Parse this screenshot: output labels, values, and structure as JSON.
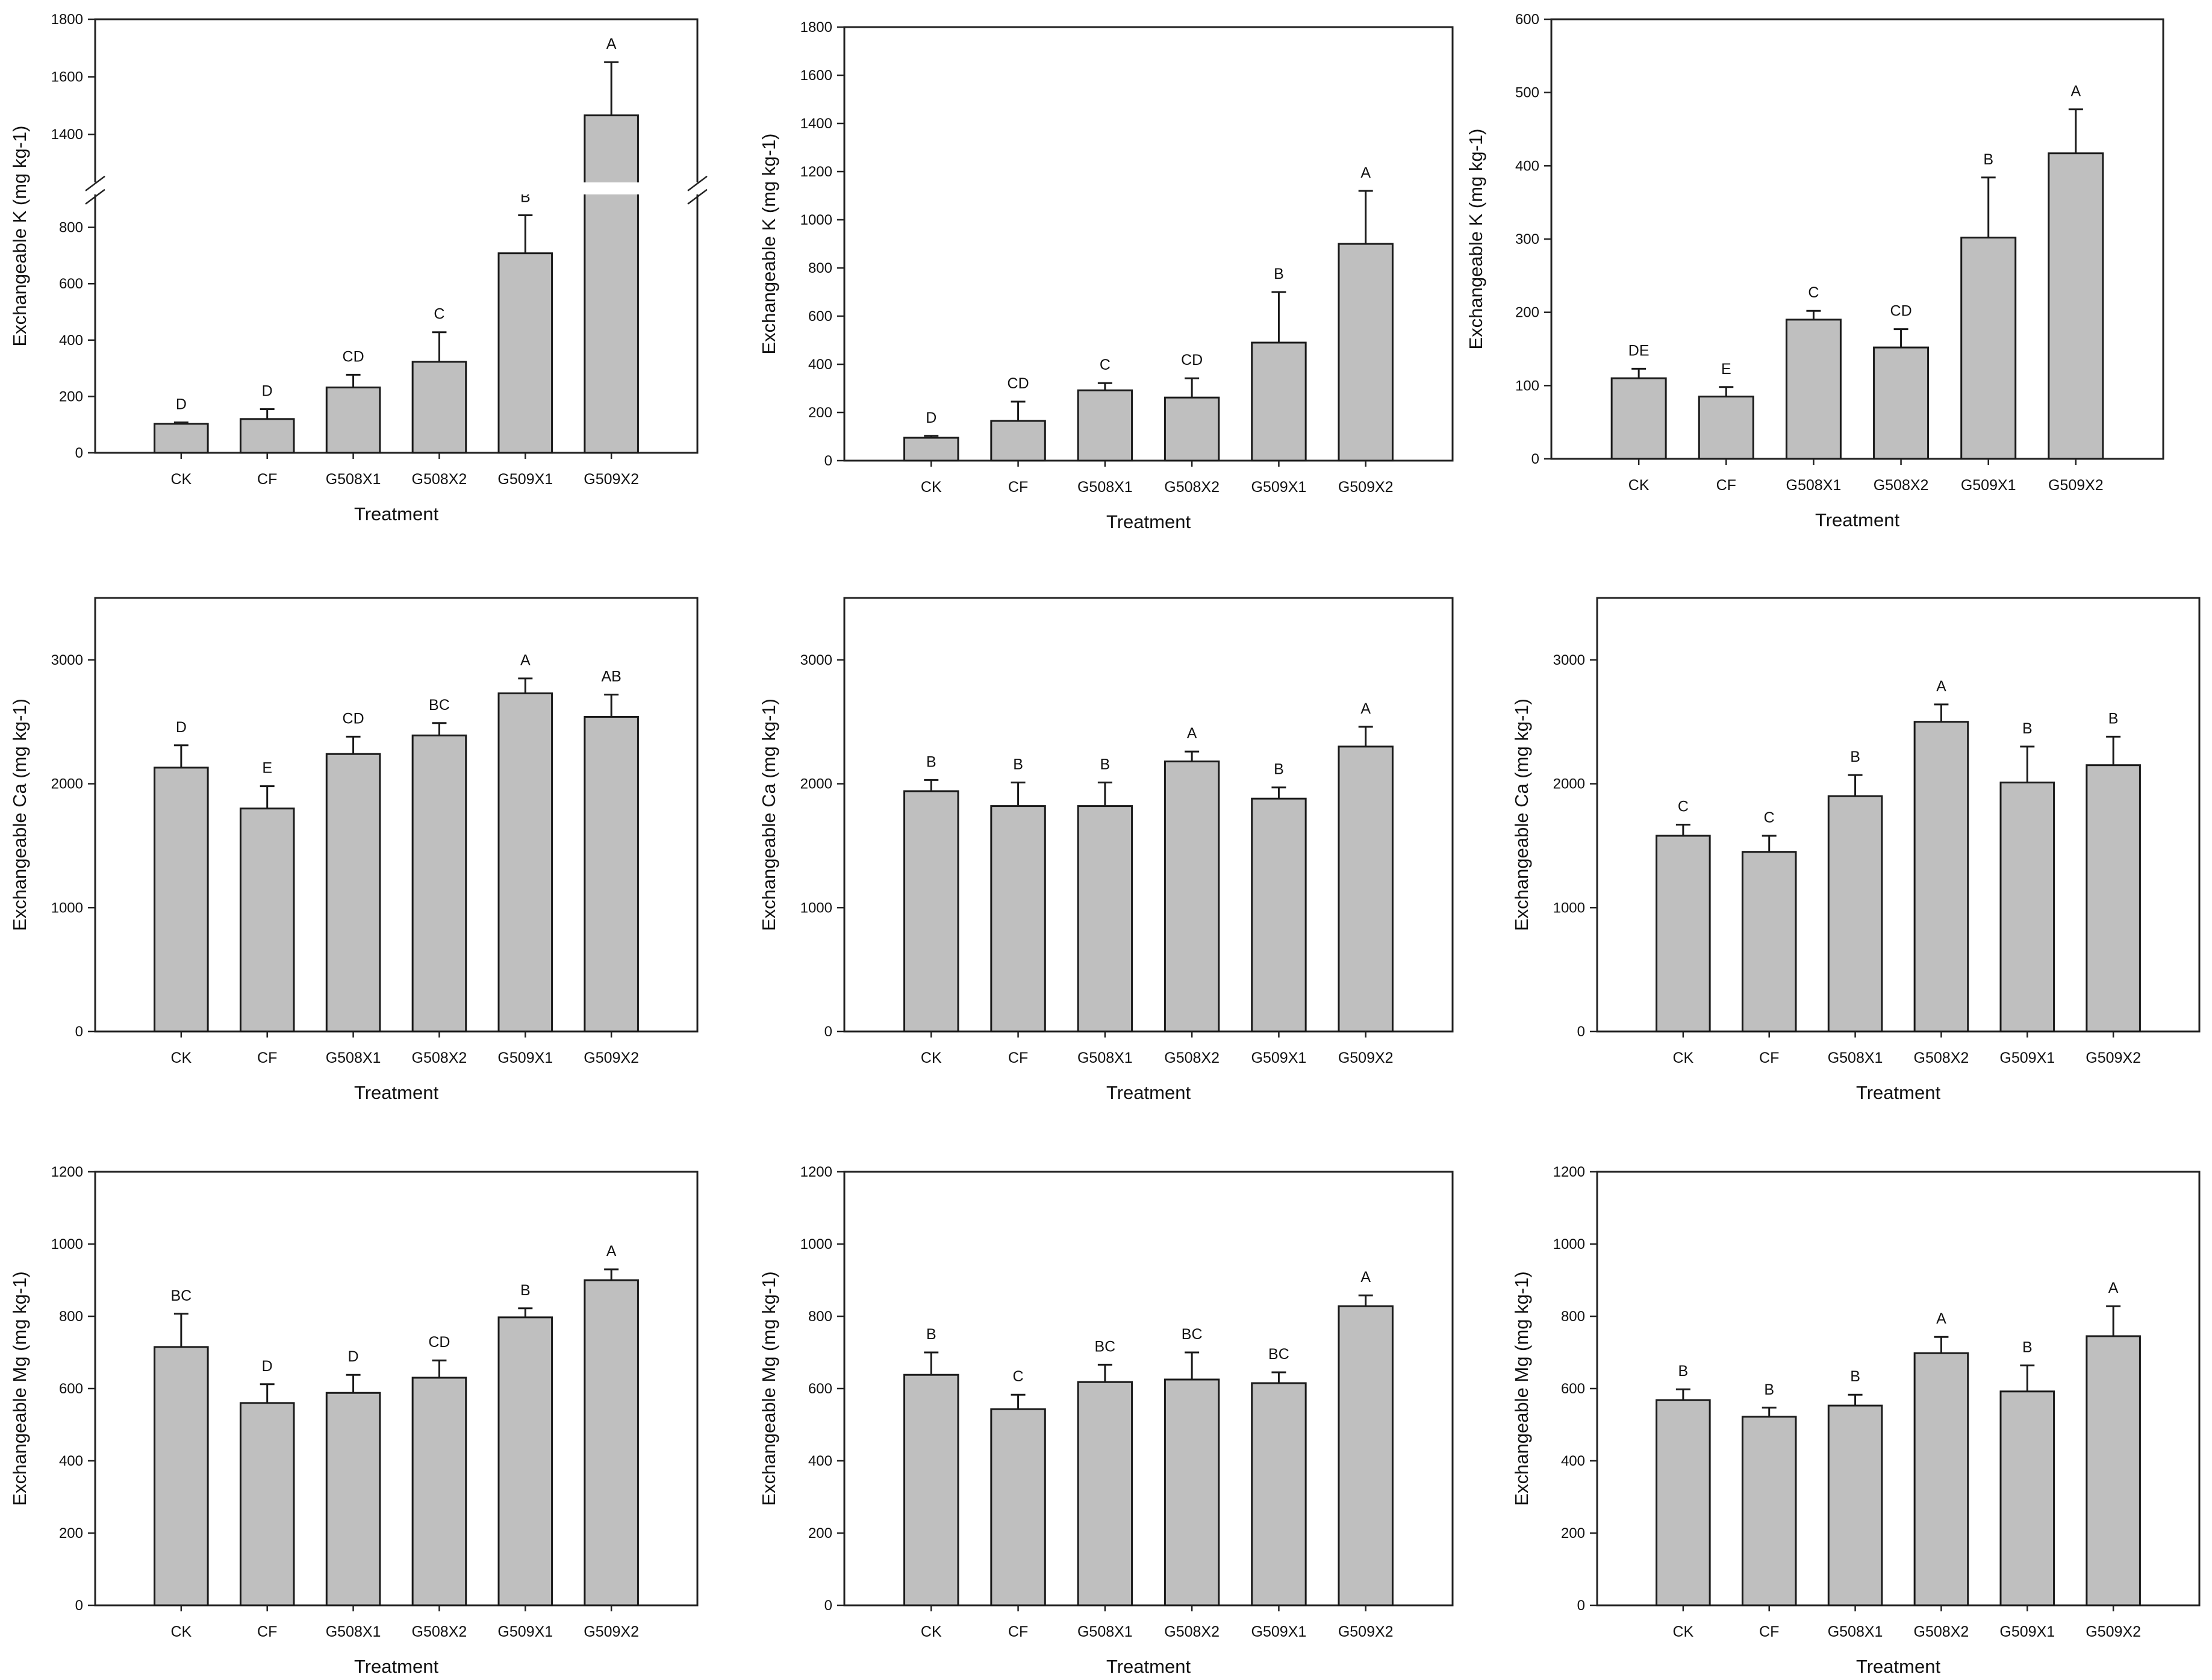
{
  "chart_data": [
    {
      "type": "bar",
      "ylabel": "Exchangeable K (mg kg-1)",
      "xlabel": "Treatment",
      "categories": [
        "CK",
        "CF",
        "G508X1",
        "G508X2",
        "G509X1",
        "G509X2"
      ],
      "values": [
        103,
        120,
        232,
        323,
        708,
        1466
      ],
      "errors": [
        5,
        35,
        45,
        105,
        135,
        185
      ],
      "letters": [
        "D",
        "D",
        "CD",
        "C",
        "B",
        "A"
      ],
      "y_break": {
        "lower": [
          0,
          900
        ],
        "upper": [
          1250,
          1800
        ]
      },
      "yticks": [
        0,
        200,
        400,
        600,
        800,
        1400,
        1600,
        1800
      ]
    },
    {
      "type": "bar",
      "ylabel": "Exchangeable K (mg kg-1)",
      "xlabel": "Treatment",
      "categories": [
        "CK",
        "CF",
        "G508X1",
        "G508X2",
        "G509X1",
        "G509X2"
      ],
      "values": [
        95,
        165,
        292,
        262,
        490,
        900
      ],
      "errors": [
        8,
        80,
        30,
        80,
        210,
        220
      ],
      "letters": [
        "D",
        "CD",
        "C",
        "CD",
        "B",
        "A"
      ],
      "ylim": [
        0,
        1800
      ],
      "yticks": [
        0,
        200,
        400,
        600,
        800,
        1000,
        1200,
        1400,
        1600,
        1800
      ]
    },
    {
      "type": "bar",
      "ylabel": "Exchangeable K (mg kg-1)",
      "xlabel": "Treatment",
      "categories": [
        "CK",
        "CF",
        "G508X1",
        "G508X2",
        "G509X1",
        "G509X2"
      ],
      "values": [
        110,
        85,
        190,
        152,
        302,
        417
      ],
      "errors": [
        13,
        13,
        12,
        25,
        82,
        60
      ],
      "letters": [
        "DE",
        "E",
        "C",
        "CD",
        "B",
        "A"
      ],
      "ylim": [
        0,
        600
      ],
      "yticks": [
        0,
        100,
        200,
        300,
        400,
        500,
        600
      ]
    },
    {
      "type": "bar",
      "ylabel": "Exchangeable Ca (mg kg-1)",
      "xlabel": "Treatment",
      "categories": [
        "CK",
        "CF",
        "G508X1",
        "G508X2",
        "G509X1",
        "G509X2"
      ],
      "values": [
        2130,
        1800,
        2240,
        2390,
        2730,
        2540
      ],
      "errors": [
        180,
        180,
        140,
        100,
        120,
        180
      ],
      "letters": [
        "D",
        "E",
        "CD",
        "BC",
        "A",
        "AB"
      ],
      "ylim": [
        0,
        3500
      ],
      "yticks": [
        0,
        1000,
        2000,
        3000
      ]
    },
    {
      "type": "bar",
      "ylabel": "Exchangeable Ca (mg kg-1)",
      "xlabel": "Treatment",
      "categories": [
        "CK",
        "CF",
        "G508X1",
        "G508X2",
        "G509X1",
        "G509X2"
      ],
      "values": [
        1940,
        1820,
        1820,
        2180,
        1880,
        2300
      ],
      "errors": [
        90,
        190,
        190,
        80,
        90,
        160
      ],
      "letters": [
        "B",
        "B",
        "B",
        "A",
        "B",
        "A"
      ],
      "ylim": [
        0,
        3500
      ],
      "yticks": [
        0,
        1000,
        2000,
        3000
      ]
    },
    {
      "type": "bar",
      "ylabel": "Exchangeable Ca (mg kg-1)",
      "xlabel": "Treatment",
      "categories": [
        "CK",
        "CF",
        "G508X1",
        "G508X2",
        "G509X1",
        "G509X2"
      ],
      "values": [
        1580,
        1450,
        1900,
        2500,
        2010,
        2150
      ],
      "errors": [
        90,
        130,
        170,
        140,
        290,
        230
      ],
      "letters": [
        "C",
        "C",
        "B",
        "A",
        "B",
        "B"
      ],
      "ylim": [
        0,
        3500
      ],
      "yticks": [
        0,
        1000,
        2000,
        3000
      ]
    },
    {
      "type": "bar",
      "ylabel": "Exchangeable Mg (mg kg-1)",
      "xlabel": "Treatment",
      "categories": [
        "CK",
        "CF",
        "G508X1",
        "G508X2",
        "G509X1",
        "G509X2"
      ],
      "values": [
        715,
        560,
        588,
        630,
        797,
        900
      ],
      "errors": [
        92,
        52,
        50,
        48,
        25,
        30
      ],
      "letters": [
        "BC",
        "D",
        "D",
        "CD",
        "B",
        "A"
      ],
      "ylim": [
        0,
        1200
      ],
      "yticks": [
        0,
        200,
        400,
        600,
        800,
        1000,
        1200
      ]
    },
    {
      "type": "bar",
      "ylabel": "Exchangeable Mg (mg kg-1)",
      "xlabel": "Treatment",
      "categories": [
        "CK",
        "CF",
        "G508X1",
        "G508X2",
        "G509X1",
        "G509X2"
      ],
      "values": [
        638,
        543,
        618,
        625,
        615,
        828
      ],
      "errors": [
        62,
        40,
        48,
        75,
        30,
        30
      ],
      "letters": [
        "B",
        "C",
        "BC",
        "BC",
        "BC",
        "A"
      ],
      "ylim": [
        0,
        1200
      ],
      "yticks": [
        0,
        200,
        400,
        600,
        800,
        1000,
        1200
      ]
    },
    {
      "type": "bar",
      "ylabel": "Exchangeable Mg (mg kg-1)",
      "xlabel": "Treatment",
      "categories": [
        "CK",
        "CF",
        "G508X1",
        "G508X2",
        "G509X1",
        "G509X2"
      ],
      "values": [
        568,
        522,
        553,
        698,
        592,
        745
      ],
      "errors": [
        30,
        25,
        30,
        45,
        72,
        83
      ],
      "letters": [
        "B",
        "B",
        "B",
        "A",
        "B",
        "A"
      ],
      "ylim": [
        0,
        1200
      ],
      "yticks": [
        0,
        200,
        400,
        600,
        800,
        1000,
        1200
      ]
    }
  ]
}
